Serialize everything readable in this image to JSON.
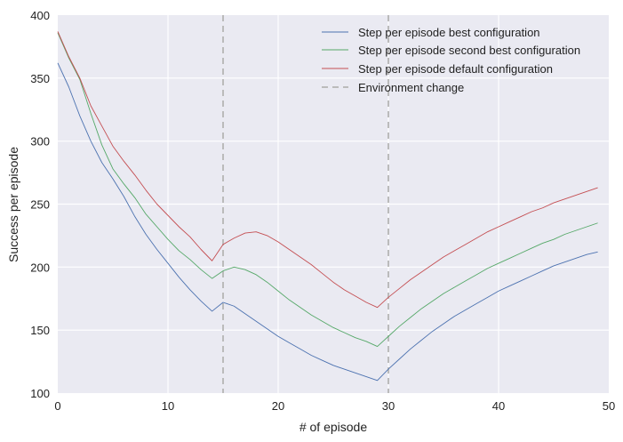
{
  "chart_data": {
    "type": "line",
    "title": "",
    "xlabel": "# of episode",
    "ylabel": "Success per episode",
    "xlim": [
      0,
      50
    ],
    "ylim": [
      100,
      400
    ],
    "xticks": [
      0,
      10,
      20,
      30,
      40,
      50
    ],
    "yticks": [
      100,
      150,
      200,
      250,
      300,
      350,
      400
    ],
    "grid": true,
    "legend_position": "top-right",
    "x": [
      0,
      1,
      2,
      3,
      4,
      5,
      6,
      7,
      8,
      9,
      10,
      11,
      12,
      13,
      14,
      15,
      16,
      17,
      18,
      19,
      20,
      21,
      22,
      23,
      24,
      25,
      26,
      27,
      28,
      29,
      30,
      31,
      32,
      33,
      34,
      35,
      36,
      37,
      38,
      39,
      40,
      41,
      42,
      43,
      44,
      45,
      46,
      47,
      48,
      49
    ],
    "series": [
      {
        "name": "Step per episode best configuration",
        "color": "#4c72b0",
        "values": [
          362,
          343,
          320,
          300,
          283,
          270,
          256,
          240,
          226,
          214,
          203,
          192,
          182,
          173,
          165,
          172,
          169,
          163,
          157,
          151,
          145,
          140,
          135,
          130,
          126,
          122,
          119,
          116,
          113,
          110,
          119,
          127,
          135,
          142,
          149,
          155,
          161,
          166,
          171,
          176,
          181,
          185,
          189,
          193,
          197,
          201,
          204,
          207,
          210,
          212
        ]
      },
      {
        "name": "Step per episode second best configuration",
        "color": "#55a868",
        "values": [
          386,
          366,
          349,
          322,
          297,
          278,
          266,
          255,
          242,
          232,
          222,
          213,
          206,
          198,
          191,
          197,
          200,
          198,
          194,
          188,
          181,
          174,
          168,
          162,
          157,
          152,
          148,
          144,
          141,
          137,
          145,
          153,
          160,
          167,
          173,
          179,
          184,
          189,
          194,
          199,
          203,
          207,
          211,
          215,
          219,
          222,
          226,
          229,
          232,
          235
        ]
      },
      {
        "name": "Step per episode default configuration",
        "color": "#c44e52",
        "values": [
          387,
          367,
          350,
          328,
          312,
          296,
          284,
          273,
          261,
          250,
          241,
          232,
          224,
          214,
          205,
          218,
          223,
          227,
          228,
          225,
          220,
          214,
          208,
          202,
          195,
          188,
          182,
          177,
          172,
          168,
          176,
          183,
          190,
          196,
          202,
          208,
          213,
          218,
          223,
          228,
          232,
          236,
          240,
          244,
          247,
          251,
          254,
          257,
          260,
          263
        ]
      }
    ],
    "vlines": {
      "name": "Environment change",
      "color": "#bbbbbb",
      "x": [
        15,
        30
      ]
    }
  }
}
